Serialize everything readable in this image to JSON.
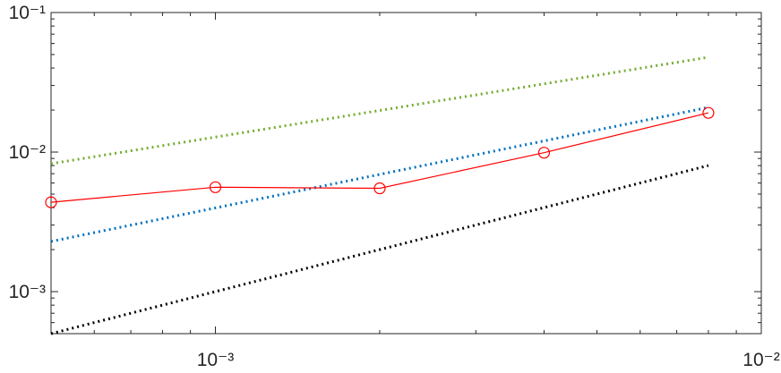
{
  "chart_data": {
    "type": "line",
    "x_scale": "log",
    "y_scale": "log",
    "xlim": [
      0.0005,
      0.01
    ],
    "ylim": [
      0.0005,
      0.1
    ],
    "xticks": [
      {
        "value": 0.001,
        "label": "10⁻³"
      },
      {
        "value": 0.01,
        "label": "10⁻²"
      }
    ],
    "yticks": [
      {
        "value": 0.001,
        "label": "10⁻³"
      },
      {
        "value": 0.01,
        "label": "10⁻²"
      },
      {
        "value": 0.1,
        "label": "10⁻¹"
      }
    ],
    "minor_ticks": true,
    "box": true,
    "grid": false,
    "series": [
      {
        "color": "#77ac30",
        "style": "dotted",
        "x": [
          0.0005,
          0.008
        ],
        "values": [
          0.00826,
          0.0478
        ]
      },
      {
        "color": "#0072bd",
        "style": "dotted",
        "x": [
          0.0005,
          0.008
        ],
        "values": [
          0.00229,
          0.0209
        ]
      },
      {
        "color": "#000000",
        "style": "dotted",
        "x": [
          0.0005,
          0.008
        ],
        "values": [
          0.0005,
          0.008
        ]
      },
      {
        "color": "#ff0000",
        "style": "solid",
        "marker": "circle",
        "x": [
          0.0005,
          0.001,
          0.002,
          0.004,
          0.008
        ],
        "values": [
          0.00437,
          0.0056,
          0.0055,
          0.0099,
          0.0191
        ]
      }
    ]
  }
}
